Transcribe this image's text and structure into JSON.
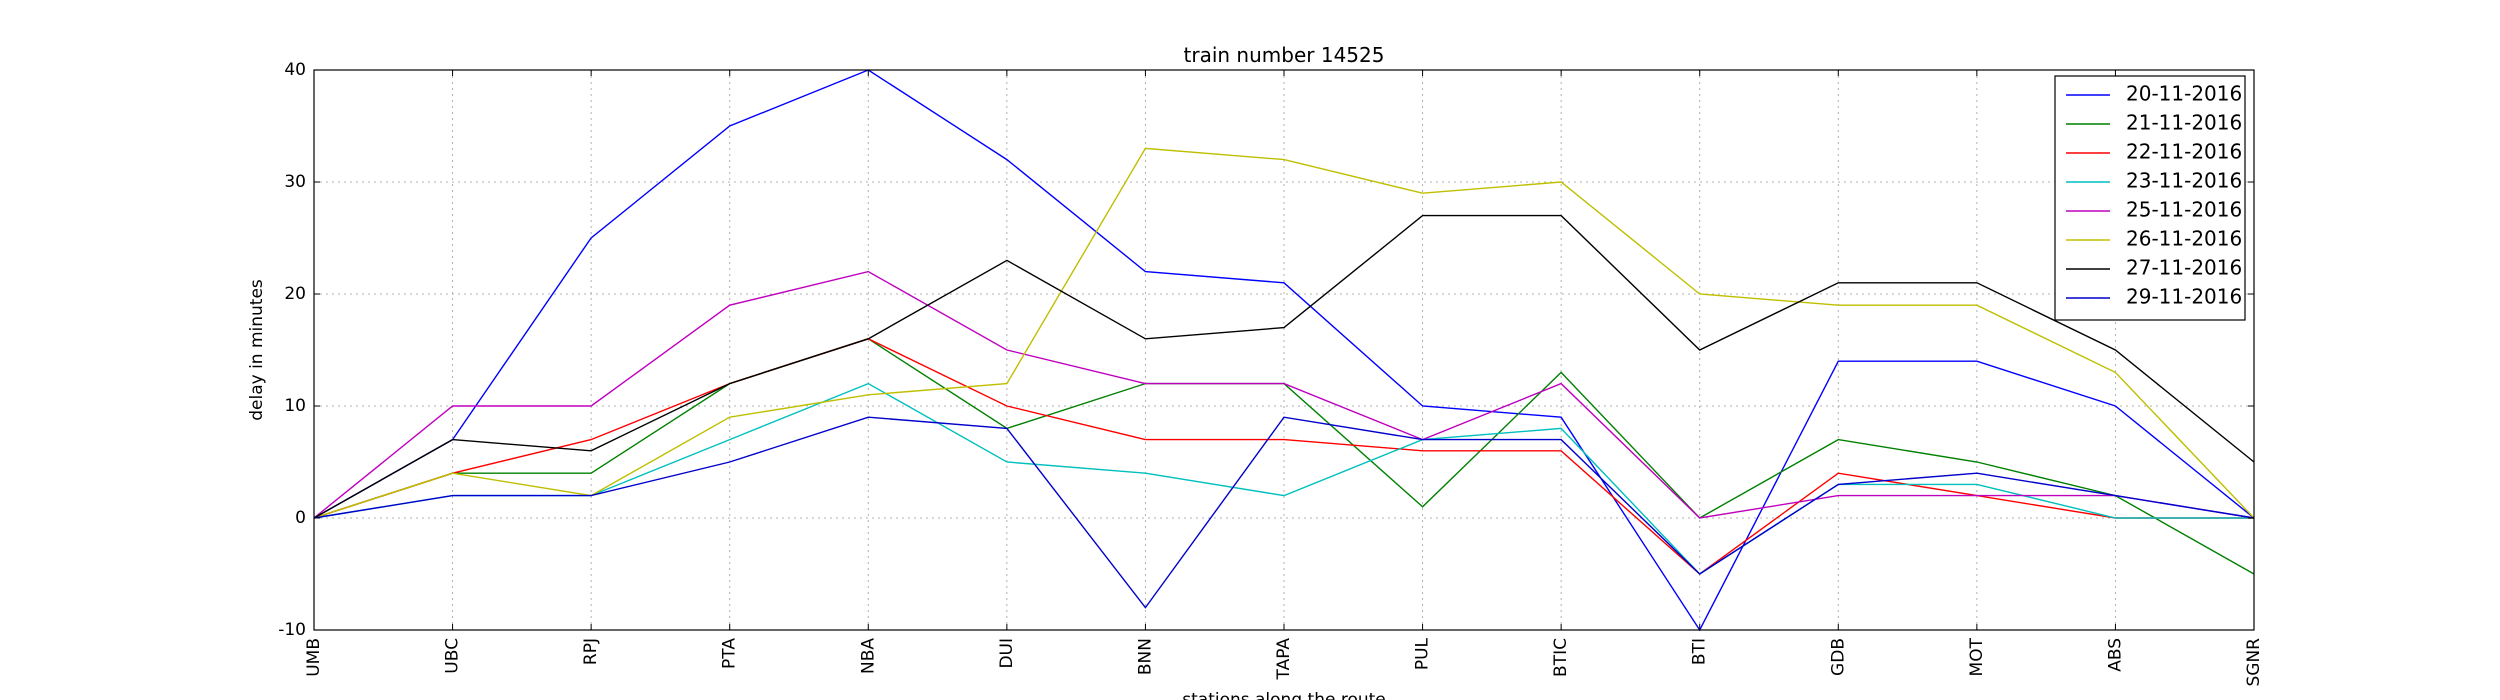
{
  "chart_data": {
    "type": "line",
    "title": "train number 14525",
    "xlabel": "stations along the route",
    "ylabel": "delay in minutes",
    "categories": [
      "UMB",
      "UBC",
      "RPJ",
      "PTA",
      "NBA",
      "DUI",
      "BNN",
      "TAPA",
      "PUL",
      "BTIC",
      "BTI",
      "GDB",
      "MOT",
      "ABS",
      "SGNR"
    ],
    "ylim": [
      -10,
      40
    ],
    "yticks": [
      -10,
      0,
      10,
      20,
      30,
      40
    ],
    "grid": true,
    "legend_position": "top-right",
    "series": [
      {
        "name": "20-11-2016",
        "color": "#0000ff",
        "values": [
          0,
          7,
          25,
          35,
          40,
          32,
          22,
          21,
          10,
          9,
          -10,
          14,
          14,
          10,
          0
        ]
      },
      {
        "name": "21-11-2016",
        "color": "#008000",
        "values": [
          0,
          4,
          4,
          12,
          16,
          8,
          12,
          12,
          1,
          13,
          0,
          7,
          5,
          2,
          -5
        ]
      },
      {
        "name": "22-11-2016",
        "color": "#ff0000",
        "values": [
          0,
          4,
          7,
          12,
          16,
          10,
          7,
          7,
          6,
          6,
          -5,
          4,
          2,
          0,
          0
        ]
      },
      {
        "name": "23-11-2016",
        "color": "#00bfbf",
        "values": [
          0,
          2,
          2,
          7,
          12,
          5,
          4,
          2,
          7,
          8,
          -5,
          3,
          3,
          0,
          0
        ]
      },
      {
        "name": "25-11-2016",
        "color": "#bf00bf",
        "values": [
          0,
          10,
          10,
          19,
          22,
          15,
          12,
          12,
          7,
          12,
          0,
          2,
          2,
          2,
          0
        ]
      },
      {
        "name": "26-11-2016",
        "color": "#bfbf00",
        "values": [
          0,
          4,
          2,
          9,
          11,
          12,
          33,
          32,
          29,
          30,
          20,
          19,
          19,
          13,
          0
        ]
      },
      {
        "name": "27-11-2016",
        "color": "#000000",
        "values": [
          0,
          7,
          6,
          12,
          16,
          23,
          16,
          17,
          27,
          27,
          15,
          21,
          21,
          15,
          5
        ]
      },
      {
        "name": "29-11-2016",
        "color": "#0000cc",
        "values": [
          0,
          2,
          2,
          5,
          9,
          8,
          -8,
          9,
          7,
          7,
          -5,
          3,
          4,
          2,
          0
        ]
      }
    ]
  }
}
